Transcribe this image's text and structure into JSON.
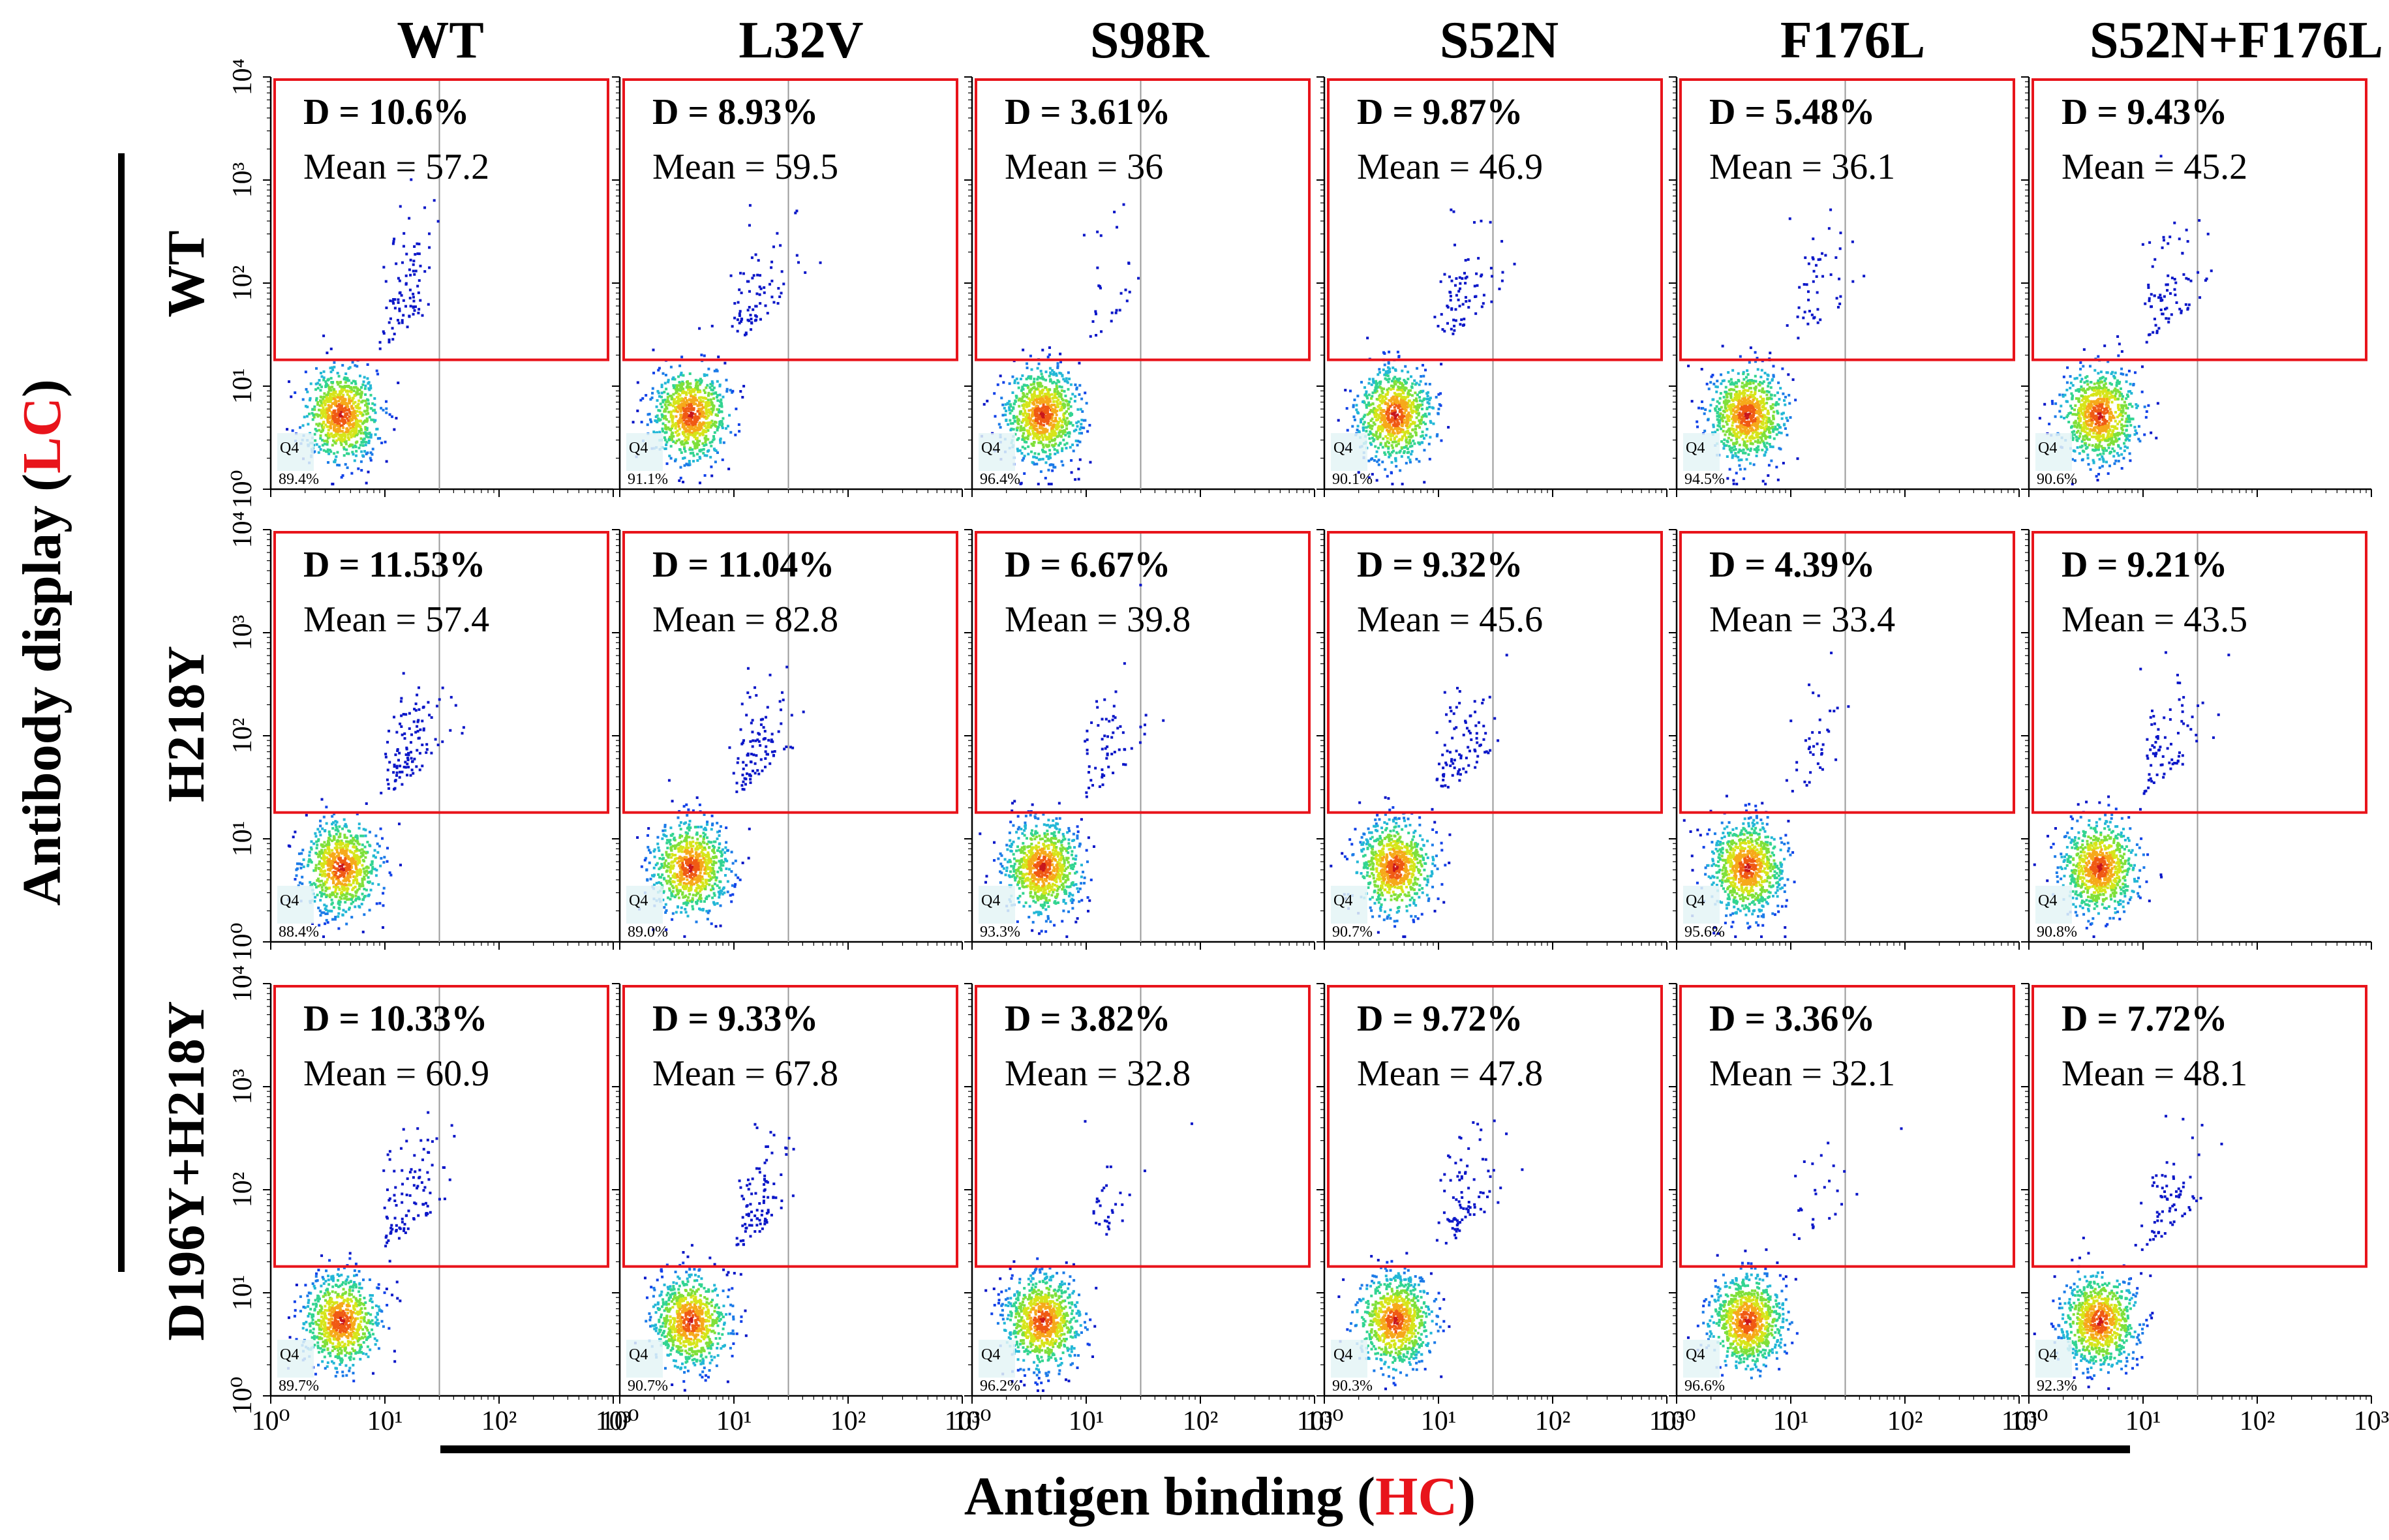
{
  "chart_data": {
    "type": "scatter",
    "plot_style": "flow cytometry density plot grid (3 rows x 6 columns)",
    "x_axis_title_prefix": "Antigen binding (",
    "x_axis_title_highlight": "HC",
    "x_axis_title_suffix": ")",
    "y_axis_title_prefix": "Antibody display (",
    "y_axis_title_highlight": "LC",
    "y_axis_title_suffix": ")",
    "highlight_color": "#e8141b",
    "gate_color": "#e8141b",
    "x_scale": "log",
    "y_scale": "log",
    "xlim": [
      1,
      1000
    ],
    "ylim": [
      1,
      10000
    ],
    "x_tick_labels": [
      "10⁰",
      "10¹",
      "10²",
      "10³"
    ],
    "y_tick_labels": [
      "10⁰",
      "10¹",
      "10²",
      "10³",
      "10⁴"
    ],
    "quadrant_label": "Q4",
    "columns": [
      "WT",
      "L32V",
      "S98R",
      "S52N",
      "F176L",
      "S52N+F176L"
    ],
    "rows": [
      "WT",
      "H218Y",
      "D196Y+H218Y"
    ],
    "gate_threshold_y": 18,
    "vertical_gate_x": 30,
    "panels": [
      [
        {
          "d": "D = 10.6%",
          "mean": "Mean = 57.2",
          "q4": "89.4%"
        },
        {
          "d": "D = 8.93%",
          "mean": "Mean = 59.5",
          "q4": "91.1%"
        },
        {
          "d": "D = 3.61%",
          "mean": "Mean = 36",
          "q4": "96.4%"
        },
        {
          "d": "D = 9.87%",
          "mean": "Mean = 46.9",
          "q4": "90.1%"
        },
        {
          "d": "D = 5.48%",
          "mean": "Mean = 36.1",
          "q4": "94.5%"
        },
        {
          "d": "D = 9.43%",
          "mean": "Mean = 45.2",
          "q4": "90.6%"
        }
      ],
      [
        {
          "d": "D = 11.53%",
          "mean": "Mean = 57.4",
          "q4": "88.4%"
        },
        {
          "d": "D = 11.04%",
          "mean": "Mean = 82.8",
          "q4": "89.0%"
        },
        {
          "d": "D = 6.67%",
          "mean": "Mean = 39.8",
          "q4": "93.3%"
        },
        {
          "d": "D = 9.32%",
          "mean": "Mean = 45.6",
          "q4": "90.7%"
        },
        {
          "d": "D = 4.39%",
          "mean": "Mean = 33.4",
          "q4": "95.6%"
        },
        {
          "d": "D = 9.21%",
          "mean": "Mean = 43.5",
          "q4": "90.8%"
        }
      ],
      [
        {
          "d": "D = 10.33%",
          "mean": "Mean = 60.9",
          "q4": "89.7%"
        },
        {
          "d": "D = 9.33%",
          "mean": "Mean = 67.8",
          "q4": "90.7%"
        },
        {
          "d": "D = 3.82%",
          "mean": "Mean = 32.8",
          "q4": "96.2%"
        },
        {
          "d": "D = 9.72%",
          "mean": "Mean = 47.8",
          "q4": "90.3%"
        },
        {
          "d": "D = 3.36%",
          "mean": "Mean = 32.1",
          "q4": "96.6%"
        },
        {
          "d": "D = 7.72%",
          "mean": "Mean = 48.1",
          "q4": "92.3%"
        }
      ]
    ]
  }
}
